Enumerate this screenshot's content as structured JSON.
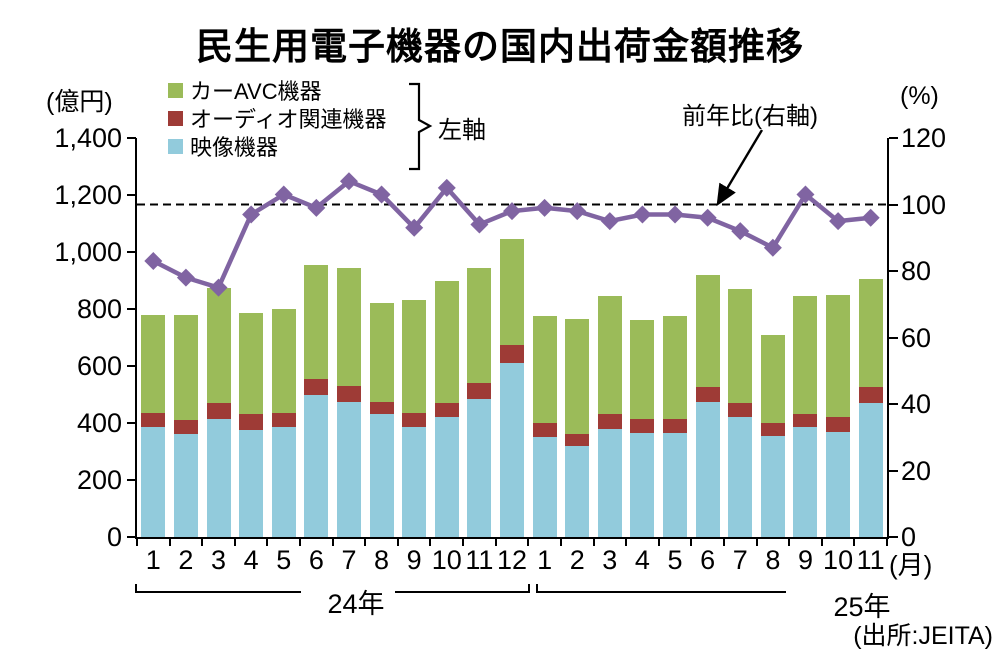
{
  "title": "民生用電子機器の国内出荷金額推移",
  "axes": {
    "left": {
      "unit": "(億円)",
      "tick_labels": [
        "1,400",
        "1,200",
        "1,000",
        "800",
        "600",
        "400",
        "200",
        "0"
      ]
    },
    "right": {
      "unit": "(%)",
      "tick_labels": [
        "120",
        "100",
        "80",
        "60",
        "40",
        "20",
        "0"
      ]
    },
    "x": {
      "unit": "(月)"
    }
  },
  "legend": {
    "items": [
      {
        "label": "カーAVC機器",
        "color": "#9BBB59"
      },
      {
        "label": "オーディオ関連機器",
        "color": "#9E3B36"
      },
      {
        "label": "映像機器",
        "color": "#92CBDC"
      }
    ],
    "axis_note": "左軸"
  },
  "annotation": {
    "label": "前年比(右軸)"
  },
  "source": "(出所:JEITA)",
  "chart_data": {
    "type": "bar",
    "subtype": "stacked-bars-with-line-overlay",
    "title": "民生用電子機器の国内出荷金額推移",
    "categories": [
      "1",
      "2",
      "3",
      "4",
      "5",
      "6",
      "7",
      "8",
      "9",
      "10",
      "11",
      "12",
      "1",
      "2",
      "3",
      "4",
      "5",
      "6",
      "7",
      "8",
      "9",
      "10",
      "11"
    ],
    "x_groups": [
      {
        "label": "24年",
        "count": 12
      },
      {
        "label": "25年",
        "count": 11
      }
    ],
    "series": [
      {
        "name": "映像機器",
        "kind": "bar",
        "axis": "left",
        "color": "#92CBDC",
        "values": [
          385,
          360,
          415,
          375,
          385,
          500,
          475,
          430,
          385,
          420,
          485,
          610,
          350,
          320,
          380,
          365,
          365,
          475,
          420,
          355,
          385,
          370,
          470
        ]
      },
      {
        "name": "オーディオ関連機器",
        "kind": "bar",
        "axis": "left",
        "color": "#9E3B36",
        "values": [
          50,
          50,
          55,
          55,
          50,
          55,
          55,
          45,
          50,
          50,
          55,
          65,
          50,
          40,
          50,
          50,
          50,
          50,
          50,
          45,
          45,
          50,
          55
        ]
      },
      {
        "name": "カーAVC機器",
        "kind": "bar",
        "axis": "left",
        "color": "#9BBB59",
        "values": [
          345,
          370,
          405,
          355,
          365,
          400,
          415,
          345,
          395,
          430,
          405,
          370,
          375,
          405,
          415,
          345,
          360,
          395,
          400,
          310,
          415,
          430,
          380
        ]
      },
      {
        "name": "前年比(右軸)",
        "kind": "line",
        "axis": "right",
        "color": "#8064A2",
        "values": [
          83,
          78,
          75,
          97,
          103,
          99,
          107,
          103,
          93,
          105,
          94,
          98,
          99,
          98,
          95,
          97,
          97,
          96,
          92,
          87,
          103,
          95,
          96
        ]
      }
    ],
    "left_ylim": [
      0,
      1400
    ],
    "right_ylim": [
      0,
      120
    ],
    "reference_line": {
      "axis": "right",
      "value": 100,
      "style": "dashed",
      "color": "#000000"
    },
    "legend_position": "top-left",
    "grid": false
  }
}
